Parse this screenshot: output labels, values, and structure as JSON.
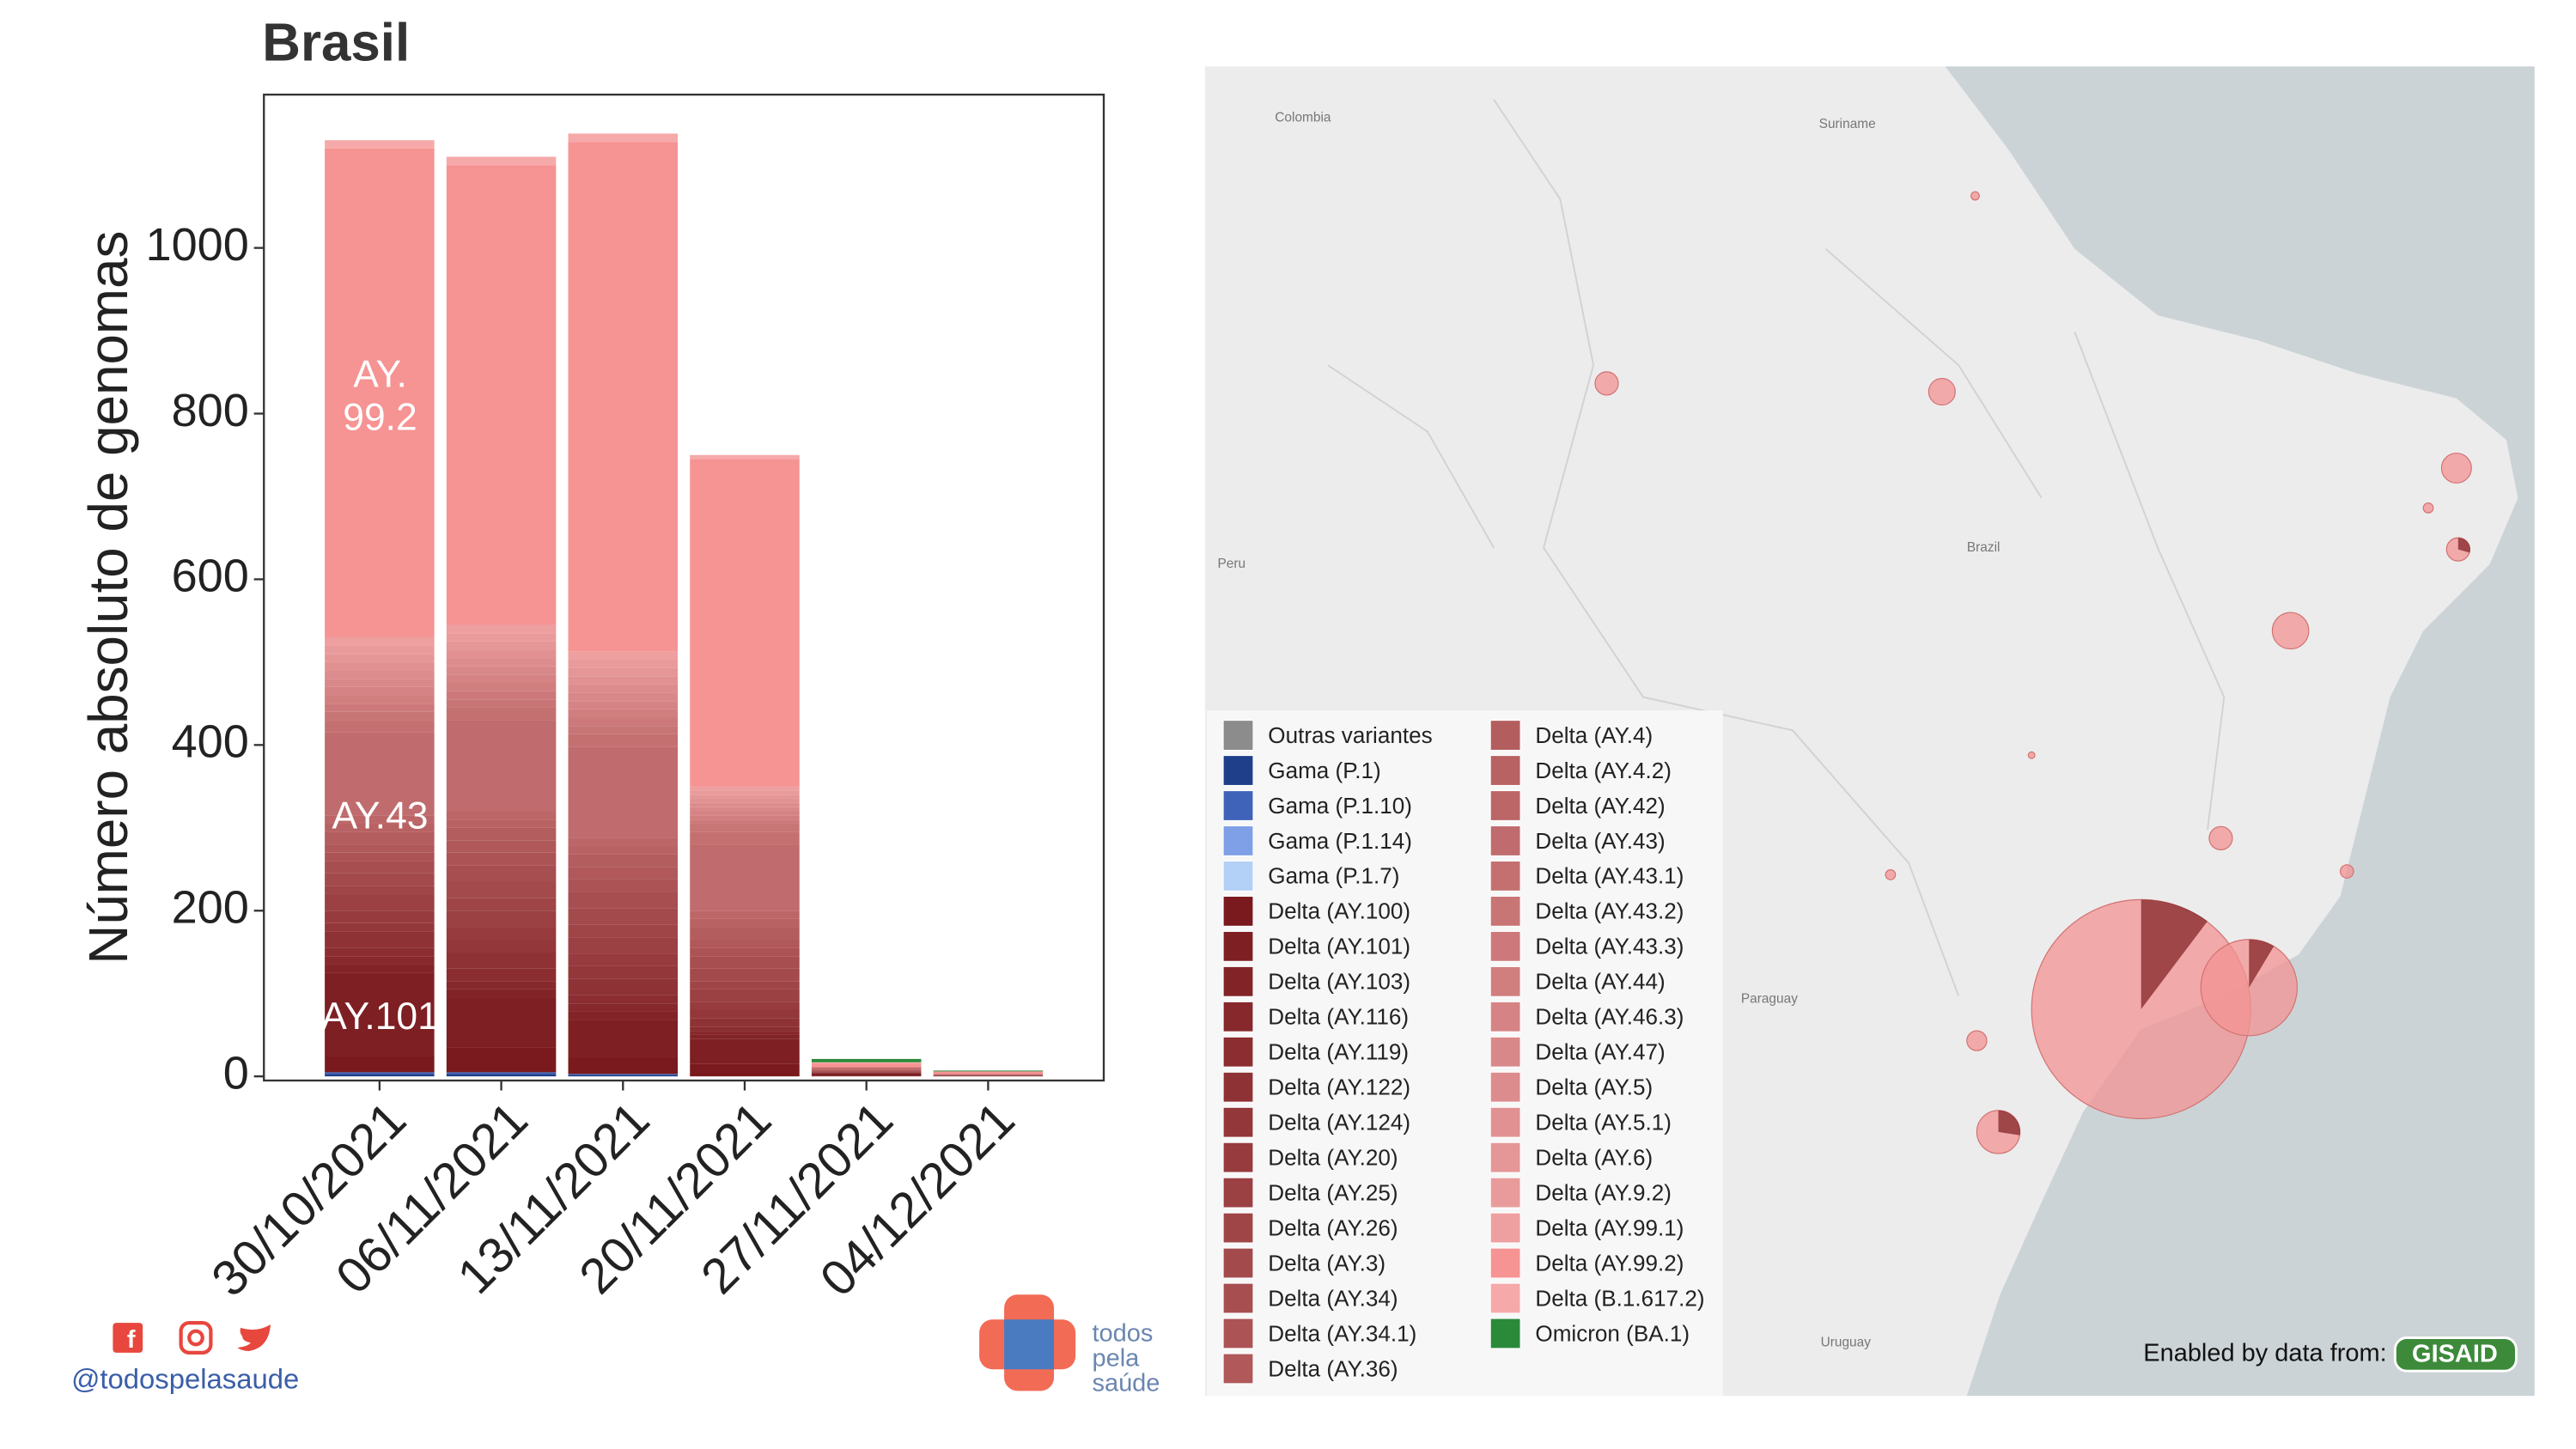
{
  "chart_data": {
    "type": "bar",
    "stacked": true,
    "title": "Brasil",
    "ylabel": "Número absoluto de genomas",
    "categories": [
      "30/10/2021",
      "06/11/2021",
      "13/11/2021",
      "20/11/2021",
      "27/11/2021",
      "04/12/2021"
    ],
    "ylim": [
      -5,
      1185
    ],
    "yticks": [
      0,
      200,
      400,
      600,
      800,
      1000
    ],
    "annotations": [
      "AY. 99.2",
      "AY.43",
      "AY.101"
    ],
    "series": [
      {
        "name": "Outras variantes",
        "color": "#8c8c8c",
        "values": [
          0,
          0,
          0,
          0,
          0,
          0
        ]
      },
      {
        "name": "Gama (P.1)",
        "color": "#1f3f8a",
        "values": [
          3,
          3,
          2,
          0,
          0,
          0
        ]
      },
      {
        "name": "Gama (P.1.10)",
        "color": "#3e63b8",
        "values": [
          2,
          2,
          1,
          0,
          0,
          0
        ]
      },
      {
        "name": "Gama (P.1.14)",
        "color": "#7fa0e6",
        "values": [
          0,
          0,
          0,
          0,
          0,
          0
        ]
      },
      {
        "name": "Gama (P.1.7)",
        "color": "#b3d0f7",
        "values": [
          0,
          0,
          0,
          0,
          0,
          0
        ]
      },
      {
        "name": "Delta (AY.100)",
        "color": "#7a1a1e",
        "values": [
          20,
          30,
          20,
          15,
          1,
          0
        ]
      },
      {
        "name": "Delta (AY.101)",
        "color": "#7e1f23",
        "values": [
          100,
          60,
          45,
          30,
          3,
          1
        ]
      },
      {
        "name": "Delta (AY.103)",
        "color": "#822427",
        "values": [
          10,
          10,
          10,
          5,
          0,
          0
        ]
      },
      {
        "name": "Delta (AY.116)",
        "color": "#86282c",
        "values": [
          10,
          10,
          10,
          5,
          0,
          0
        ]
      },
      {
        "name": "Delta (AY.119)",
        "color": "#8b2d31",
        "values": [
          10,
          15,
          10,
          5,
          0,
          0
        ]
      },
      {
        "name": "Delta (AY.122)",
        "color": "#8f3235",
        "values": [
          20,
          20,
          20,
          10,
          1,
          0
        ]
      },
      {
        "name": "Delta (AY.124)",
        "color": "#93373a",
        "values": [
          10,
          15,
          15,
          10,
          0,
          0
        ]
      },
      {
        "name": "Delta (AY.20)",
        "color": "#973b3e",
        "values": [
          15,
          15,
          15,
          10,
          0,
          0
        ]
      },
      {
        "name": "Delta (AY.25)",
        "color": "#9b4043",
        "values": [
          20,
          20,
          20,
          15,
          1,
          0
        ]
      },
      {
        "name": "Delta (AY.26)",
        "color": "#9f4548",
        "values": [
          10,
          15,
          15,
          10,
          0,
          0
        ]
      },
      {
        "name": "Delta (AY.3)",
        "color": "#a34a4c",
        "values": [
          15,
          20,
          20,
          15,
          1,
          0
        ]
      },
      {
        "name": "Delta (AY.34)",
        "color": "#a74e51",
        "values": [
          15,
          20,
          20,
          15,
          0,
          0
        ]
      },
      {
        "name": "Delta (AY.34.1)",
        "color": "#ac5356",
        "values": [
          10,
          15,
          15,
          10,
          0,
          0
        ]
      },
      {
        "name": "Delta (AY.36)",
        "color": "#b0585a",
        "values": [
          10,
          15,
          15,
          10,
          0,
          0
        ]
      },
      {
        "name": "Delta (AY.4)",
        "color": "#b45d5f",
        "values": [
          15,
          15,
          15,
          15,
          1,
          0
        ]
      },
      {
        "name": "Delta (AY.4.2)",
        "color": "#b86263",
        "values": [
          10,
          10,
          10,
          10,
          0,
          0
        ]
      },
      {
        "name": "Delta (AY.42)",
        "color": "#bc6668",
        "values": [
          10,
          10,
          10,
          10,
          0,
          0
        ]
      },
      {
        "name": "Delta (AY.43)",
        "color": "#c06b6d",
        "values": [
          100,
          110,
          110,
          80,
          3,
          2
        ]
      },
      {
        "name": "Delta (AY.43.1)",
        "color": "#c47071",
        "values": [
          15,
          15,
          15,
          15,
          0,
          0
        ]
      },
      {
        "name": "Delta (AY.43.2)",
        "color": "#c87576",
        "values": [
          10,
          10,
          10,
          10,
          0,
          0
        ]
      },
      {
        "name": "Delta (AY.43.3)",
        "color": "#cd797b",
        "values": [
          10,
          10,
          10,
          5,
          0,
          0
        ]
      },
      {
        "name": "Delta (AY.44)",
        "color": "#d17e7f",
        "values": [
          10,
          10,
          10,
          5,
          0,
          0
        ]
      },
      {
        "name": "Delta (AY.46.3)",
        "color": "#d58384",
        "values": [
          10,
          10,
          10,
          5,
          0,
          0
        ]
      },
      {
        "name": "Delta (AY.47)",
        "color": "#d98889",
        "values": [
          10,
          10,
          10,
          5,
          0,
          0
        ]
      },
      {
        "name": "Delta (AY.5)",
        "color": "#dd8c8d",
        "values": [
          10,
          10,
          10,
          5,
          0,
          0
        ]
      },
      {
        "name": "Delta (AY.5.1)",
        "color": "#e19192",
        "values": [
          10,
          10,
          10,
          5,
          0,
          0
        ]
      },
      {
        "name": "Delta (AY.6)",
        "color": "#e59696",
        "values": [
          10,
          10,
          10,
          5,
          0,
          0
        ]
      },
      {
        "name": "Delta (AY.9.2)",
        "color": "#e99b9b",
        "values": [
          10,
          10,
          10,
          5,
          0,
          0
        ]
      },
      {
        "name": "Delta (AY.99.1)",
        "color": "#ee9fa0",
        "values": [
          10,
          10,
          10,
          5,
          0,
          0
        ]
      },
      {
        "name": "Delta (AY.99.2)",
        "color": "#f69393",
        "values": [
          590,
          555,
          615,
          395,
          5,
          3
        ]
      },
      {
        "name": "Delta (B.1.617.2)",
        "color": "#f6a9a9",
        "values": [
          10,
          10,
          10,
          5,
          1,
          0
        ]
      },
      {
        "name": "Omicron (BA.1)",
        "color": "#2a8a3a",
        "values": [
          0,
          0,
          0,
          0,
          4,
          1
        ]
      }
    ]
  },
  "map": {
    "labels": [
      "Colombia",
      "Suriname",
      "Peru",
      "Brazil",
      "Paraguay",
      "Uruguay"
    ]
  },
  "attribution": {
    "text": "Enabled by data from:",
    "logo": "GISAID"
  },
  "footer": {
    "handle": "@todospelasaude",
    "logo_text": [
      "todos",
      "pela",
      "saúde"
    ]
  }
}
